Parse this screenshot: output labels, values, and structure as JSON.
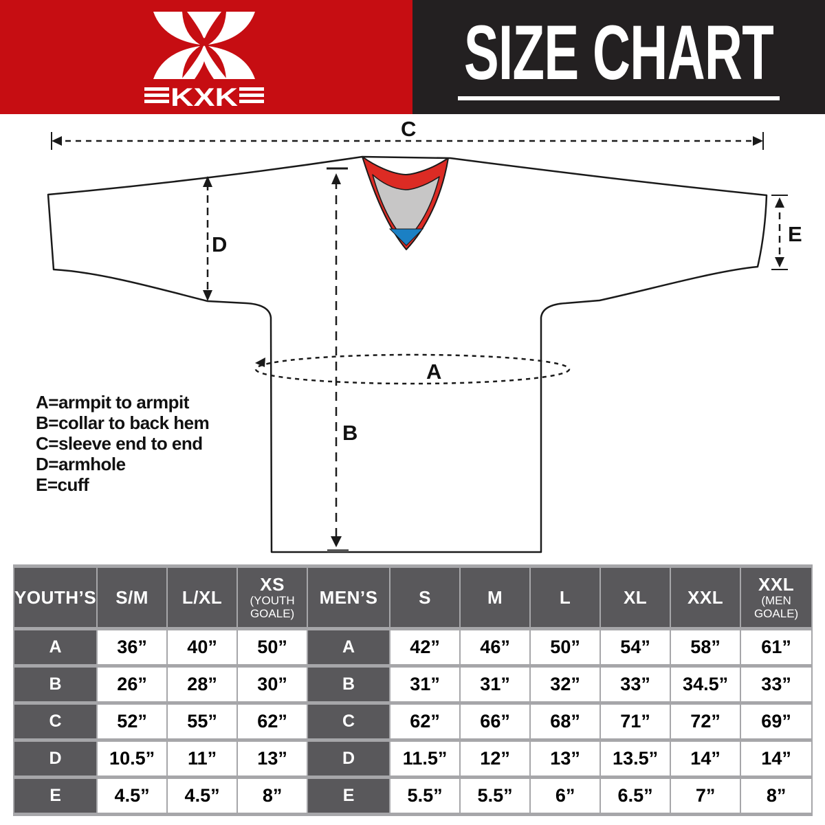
{
  "banner": {
    "logo_text": "KXK",
    "title": "SIZE CHART"
  },
  "colors": {
    "banner_red": "#C60D12",
    "banner_black": "#232021",
    "collar_red": "#DC2B24",
    "collar_gray": "#C7C6C6",
    "collar_blue": "#1B80C4",
    "table_header_gray": "#59585B",
    "table_gap_gray": "#A6A6A9"
  },
  "diagram": {
    "dim_labels": {
      "A": "A",
      "B": "B",
      "C": "C",
      "D": "D",
      "E": "E"
    },
    "legend": [
      "A=armpit to armpit",
      "B=collar to back hem",
      "C=sleeve end to end",
      "D=armhole",
      "E=cuff"
    ]
  },
  "size_table": {
    "columns": [
      {
        "label": "YOUTH’S",
        "type": "label"
      },
      {
        "label": "S/M"
      },
      {
        "label": "L/XL"
      },
      {
        "label": "XS",
        "sub": [
          "(YOUTH",
          "GOALE)"
        ]
      },
      {
        "label": "MEN’S",
        "type": "label"
      },
      {
        "label": "S"
      },
      {
        "label": "M"
      },
      {
        "label": "L"
      },
      {
        "label": "XL"
      },
      {
        "label": "XXL"
      },
      {
        "label": "XXL",
        "sub": [
          "(MEN",
          "GOALE)"
        ]
      }
    ],
    "rows": [
      {
        "letter": "A",
        "youth": [
          "36”",
          "40”",
          "50”"
        ],
        "men": [
          "42”",
          "46”",
          "50”",
          "54”",
          "58”",
          "61”"
        ]
      },
      {
        "letter": "B",
        "youth": [
          "26”",
          "28”",
          "30”"
        ],
        "men": [
          "31”",
          "31”",
          "32”",
          "33”",
          "34.5”",
          "33”"
        ]
      },
      {
        "letter": "C",
        "youth": [
          "52”",
          "55”",
          "62”"
        ],
        "men": [
          "62”",
          "66”",
          "68”",
          "71”",
          "72”",
          "69”"
        ]
      },
      {
        "letter": "D",
        "youth": [
          "10.5”",
          "11”",
          "13”"
        ],
        "men": [
          "11.5”",
          "12”",
          "13”",
          "13.5”",
          "14”",
          "14”"
        ]
      },
      {
        "letter": "E",
        "youth": [
          "4.5”",
          "4.5”",
          "8”"
        ],
        "men": [
          "5.5”",
          "5.5”",
          "6”",
          "6.5”",
          "7”",
          "8”"
        ]
      }
    ]
  }
}
